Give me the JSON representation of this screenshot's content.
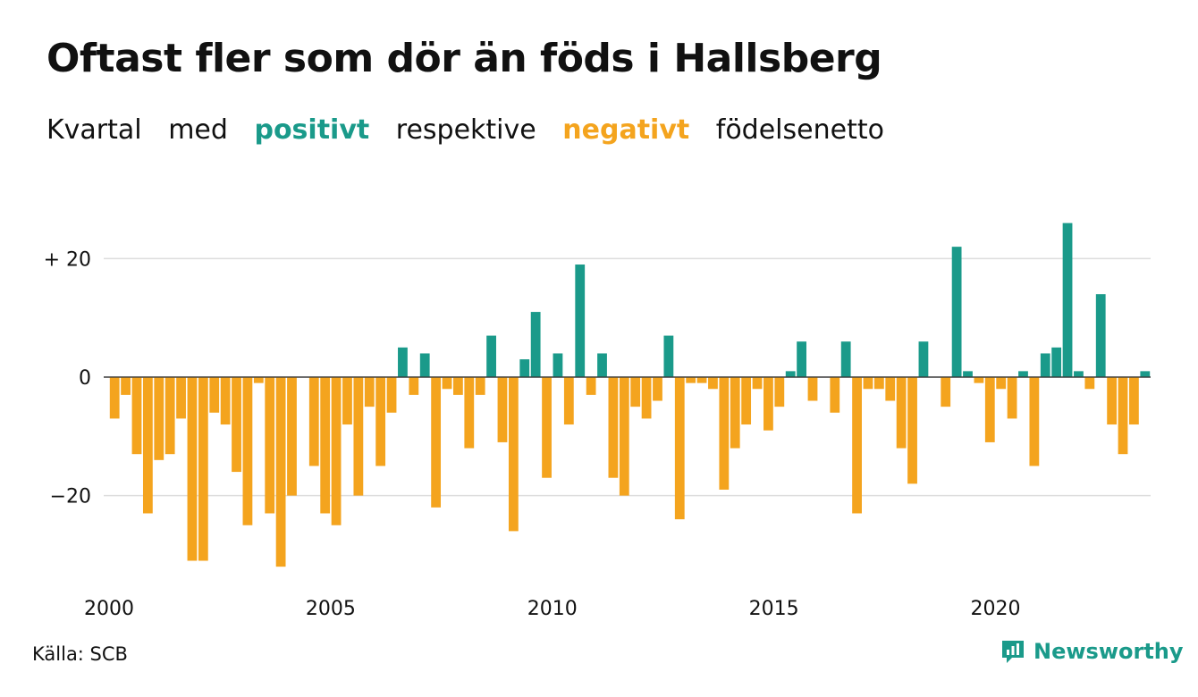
{
  "title": "Oftast fler som dör än föds i Hallsberg",
  "subtitle": {
    "w1": "Kvartal",
    "w2": "med",
    "positive": "positivt",
    "w3": "respektive",
    "negative": "negativt",
    "w4": "födelsenetto"
  },
  "colors": {
    "positive": "#1a9a8a",
    "negative": "#f4a41e",
    "grid": "#dddddd",
    "text": "#111111"
  },
  "source": "Källa: SCB",
  "brand": {
    "name": "Newsworthy",
    "icon": "newsworthy-logo-icon"
  },
  "chart_data": {
    "type": "bar",
    "x_start": "2000 Q1",
    "frequency": "quarterly",
    "x_ticks": [
      {
        "year": 2000,
        "label": "2000"
      },
      {
        "year": 2005,
        "label": "2005"
      },
      {
        "year": 2010,
        "label": "2010"
      },
      {
        "year": 2015,
        "label": "2015"
      },
      {
        "year": 2020,
        "label": "2020"
      }
    ],
    "y_ticks": [
      {
        "value": 20,
        "label": "+ 20"
      },
      {
        "value": 0,
        "label": "0"
      },
      {
        "value": -20,
        "label": "−20"
      }
    ],
    "ylim": [
      -34,
      28
    ],
    "grid": true,
    "values": [
      -7,
      -3,
      -13,
      -23,
      -14,
      -13,
      -7,
      -31,
      -31,
      -6,
      -8,
      -16,
      -25,
      -1,
      -23,
      -32,
      -20,
      0,
      -15,
      -23,
      -25,
      -8,
      -20,
      -5,
      -15,
      -6,
      5,
      -3,
      4,
      -22,
      -2,
      -3,
      -12,
      -3,
      7,
      -11,
      -26,
      3,
      11,
      -17,
      4,
      -8,
      19,
      -3,
      4,
      -17,
      -20,
      -5,
      -7,
      -4,
      7,
      -24,
      -1,
      -1,
      -2,
      -19,
      -12,
      -8,
      -2,
      -9,
      -5,
      1,
      6,
      -4,
      0,
      -6,
      6,
      -23,
      -2,
      -2,
      -4,
      -12,
      -18,
      6,
      0,
      -5,
      22,
      1,
      -1,
      -11,
      -2,
      -7,
      1,
      -15,
      4,
      5,
      26,
      1,
      -2,
      14,
      -8,
      -13,
      -8,
      1
    ]
  }
}
